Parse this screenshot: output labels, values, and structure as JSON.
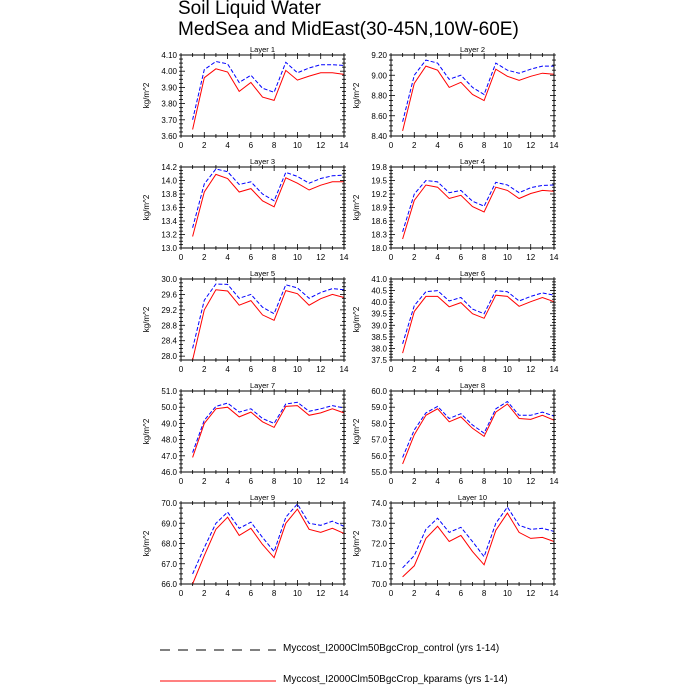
{
  "chart_data": {
    "type": "line",
    "title": [
      "Soil Liquid Water",
      "MedSea and MidEast(30-45N,10W-60E)"
    ],
    "xlim": [
      0,
      14
    ],
    "xticks": [
      0,
      2,
      4,
      6,
      8,
      10,
      12,
      14
    ],
    "x": [
      1,
      2,
      3,
      4,
      5,
      6,
      7,
      8,
      9,
      10,
      11,
      12,
      13,
      14
    ],
    "ylabel": "kg/m^2",
    "legend": {
      "placement": "bottom",
      "entries": [
        {
          "name": "Myccost_I2000Clm50BgcCrop_control (yrs 1-14)",
          "color": "#0000ff",
          "style": "dashed"
        },
        {
          "name": "Myccost_I2000Clm50BgcCrop_kparams (yrs 1-14)",
          "color": "#ff0000",
          "style": "solid"
        }
      ]
    },
    "panels": [
      {
        "title": "Layer 1",
        "ylim": [
          3.6,
          4.1
        ],
        "yticks": [
          3.6,
          3.7,
          3.8,
          3.9,
          4.0,
          4.1
        ],
        "decimals": 2,
        "series": [
          {
            "name": "control",
            "values": [
              3.7,
              4.01,
              4.06,
              4.045,
              3.93,
              3.975,
              3.895,
              3.87,
              4.055,
              3.99,
              4.02,
              4.04,
              4.04,
              4.035
            ]
          },
          {
            "name": "kparams",
            "values": [
              3.64,
              3.96,
              4.015,
              3.995,
              3.875,
              3.93,
              3.84,
              3.82,
              4.005,
              3.945,
              3.97,
              3.99,
              3.99,
              3.98
            ]
          }
        ]
      },
      {
        "title": "Layer 2",
        "ylim": [
          8.4,
          9.2
        ],
        "yticks": [
          8.4,
          8.6,
          8.8,
          9.0,
          9.2
        ],
        "decimals": 2,
        "series": [
          {
            "name": "control",
            "values": [
              8.54,
              9.0,
              9.15,
              9.12,
              8.96,
              9.0,
              8.88,
              8.81,
              9.12,
              9.05,
              9.02,
              9.06,
              9.09,
              9.09
            ]
          },
          {
            "name": "kparams",
            "values": [
              8.45,
              8.92,
              9.09,
              9.05,
              8.88,
              8.93,
              8.81,
              8.75,
              9.06,
              8.99,
              8.95,
              8.99,
              9.02,
              9.01
            ]
          }
        ]
      },
      {
        "title": "Layer 3",
        "ylim": [
          13.0,
          14.2
        ],
        "yticks": [
          13.0,
          13.2,
          13.4,
          13.6,
          13.8,
          14.0,
          14.2
        ],
        "decimals": 1,
        "series": [
          {
            "name": "control",
            "values": [
              13.3,
              13.95,
              14.17,
              14.13,
              13.94,
              13.98,
              13.8,
              13.7,
              14.12,
              14.06,
              13.96,
              14.03,
              14.07,
              14.08
            ]
          },
          {
            "name": "kparams",
            "values": [
              13.17,
              13.83,
              14.09,
              14.03,
              13.83,
              13.88,
              13.7,
              13.61,
              14.04,
              13.96,
              13.86,
              13.93,
              13.98,
              13.98
            ]
          }
        ]
      },
      {
        "title": "Layer 4",
        "ylim": [
          18.0,
          19.8
        ],
        "yticks": [
          18.0,
          18.3,
          18.6,
          18.9,
          19.2,
          19.5,
          19.8
        ],
        "decimals": 1,
        "series": [
          {
            "name": "control",
            "values": [
              18.36,
              19.2,
              19.5,
              19.47,
              19.23,
              19.28,
              19.04,
              18.93,
              19.46,
              19.4,
              19.23,
              19.34,
              19.39,
              19.4
            ]
          },
          {
            "name": "kparams",
            "values": [
              18.2,
              19.06,
              19.4,
              19.35,
              19.1,
              19.17,
              18.92,
              18.8,
              19.35,
              19.28,
              19.1,
              19.21,
              19.28,
              19.26
            ]
          }
        ]
      },
      {
        "title": "Layer 5",
        "ylim": [
          27.9,
          30.0
        ],
        "yticks": [
          28.0,
          28.4,
          28.8,
          29.2,
          29.6,
          30.0
        ],
        "decimals": 1,
        "series": [
          {
            "name": "control",
            "values": [
              28.2,
              29.45,
              29.87,
              29.86,
              29.5,
              29.6,
              29.27,
              29.1,
              29.85,
              29.77,
              29.5,
              29.65,
              29.75,
              29.72
            ]
          },
          {
            "name": "kparams",
            "values": [
              27.9,
              29.2,
              29.72,
              29.69,
              29.32,
              29.44,
              29.07,
              28.93,
              29.7,
              29.62,
              29.32,
              29.49,
              29.6,
              29.52
            ]
          }
        ]
      },
      {
        "title": "Layer 6",
        "ylim": [
          37.5,
          41.0
        ],
        "yticks": [
          37.5,
          38.0,
          38.5,
          39.0,
          39.5,
          40.0,
          40.5,
          41.0
        ],
        "decimals": 1,
        "series": [
          {
            "name": "control",
            "values": [
              38.2,
              39.85,
              40.45,
              40.5,
              40.05,
              40.2,
              39.7,
              39.5,
              40.5,
              40.45,
              40.05,
              40.25,
              40.4,
              40.3
            ]
          },
          {
            "name": "kparams",
            "values": [
              37.8,
              39.6,
              40.25,
              40.25,
              39.8,
              39.98,
              39.5,
              39.3,
              40.3,
              40.25,
              39.82,
              40.02,
              40.2,
              40.02
            ]
          }
        ]
      },
      {
        "title": "Layer 7",
        "ylim": [
          46.0,
          51.0
        ],
        "yticks": [
          46,
          47,
          48,
          49,
          50,
          51
        ],
        "decimals": 1,
        "series": [
          {
            "name": "control",
            "values": [
              47.2,
              49.2,
              50.05,
              50.25,
              49.7,
              49.9,
              49.3,
              49.0,
              50.2,
              50.3,
              49.75,
              49.9,
              50.1,
              49.95
            ]
          },
          {
            "name": "kparams",
            "values": [
              46.9,
              49.0,
              49.9,
              50.0,
              49.4,
              49.7,
              49.1,
              48.75,
              50.05,
              50.1,
              49.5,
              49.65,
              49.9,
              49.65
            ]
          }
        ]
      },
      {
        "title": "Layer 8",
        "ylim": [
          55.0,
          60.0
        ],
        "yticks": [
          55,
          56,
          57,
          58,
          59,
          60
        ],
        "decimals": 1,
        "series": [
          {
            "name": "control",
            "values": [
              55.9,
              57.6,
              58.65,
              59.05,
              58.3,
              58.6,
              57.9,
              57.4,
              58.9,
              59.35,
              58.5,
              58.5,
              58.7,
              58.45
            ]
          },
          {
            "name": "kparams",
            "values": [
              55.5,
              57.3,
              58.5,
              58.9,
              58.1,
              58.4,
              57.7,
              57.2,
              58.7,
              59.2,
              58.3,
              58.25,
              58.5,
              58.2
            ]
          }
        ]
      },
      {
        "title": "Layer 9",
        "ylim": [
          66.0,
          70.0
        ],
        "yticks": [
          66,
          67,
          68,
          69,
          70
        ],
        "decimals": 1,
        "series": [
          {
            "name": "control",
            "values": [
              66.5,
              67.8,
              69.0,
              69.55,
              68.75,
              69.05,
              68.3,
              67.6,
              69.3,
              69.95,
              69.0,
              68.9,
              69.1,
              68.85
            ]
          },
          {
            "name": "kparams",
            "values": [
              66.0,
              67.4,
              68.7,
              69.3,
              68.4,
              68.75,
              67.95,
              67.3,
              69.0,
              69.7,
              68.7,
              68.55,
              68.75,
              68.5
            ]
          }
        ]
      },
      {
        "title": "Layer 10",
        "ylim": [
          70.0,
          74.0
        ],
        "yticks": [
          70,
          71,
          72,
          73,
          74
        ],
        "decimals": 1,
        "series": [
          {
            "name": "control",
            "values": [
              70.8,
              71.4,
              72.7,
              73.25,
              72.55,
              72.8,
              72.1,
              71.35,
              73.0,
              73.8,
              72.9,
              72.7,
              72.75,
              72.6
            ]
          },
          {
            "name": "kparams",
            "values": [
              70.35,
              70.9,
              72.25,
              72.85,
              72.1,
              72.4,
              71.6,
              70.95,
              72.65,
              73.5,
              72.55,
              72.25,
              72.3,
              72.1
            ]
          }
        ]
      }
    ]
  }
}
